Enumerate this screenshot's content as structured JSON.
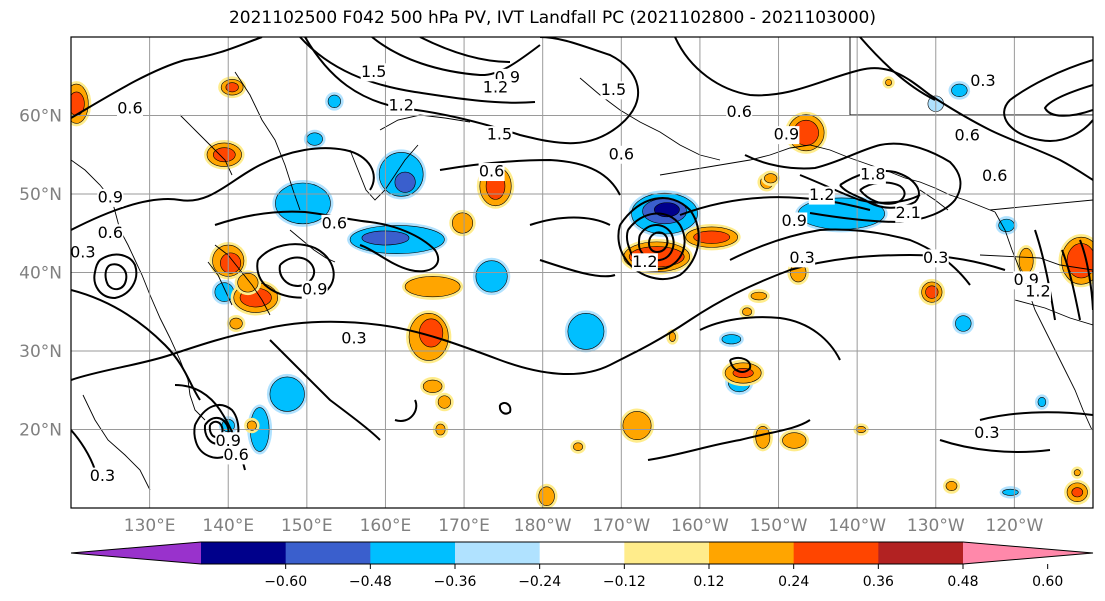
{
  "title": "2021102500 F042 500 hPa PV, IVT Landfall PC (2021102800 - 2021103000)",
  "lat_ticks": [
    {
      "lat": 60,
      "label": "60°N"
    },
    {
      "lat": 50,
      "label": "50°N"
    },
    {
      "lat": 40,
      "label": "40°N"
    },
    {
      "lat": 30,
      "label": "30°N"
    },
    {
      "lat": 20,
      "label": "20°N"
    }
  ],
  "lon_ticks": [
    {
      "lon": 130,
      "label": "130°E"
    },
    {
      "lon": 140,
      "label": "140°E"
    },
    {
      "lon": 150,
      "label": "150°E"
    },
    {
      "lon": 160,
      "label": "160°E"
    },
    {
      "lon": 170,
      "label": "170°E"
    },
    {
      "lon": 180,
      "label": "180°W"
    },
    {
      "lon": 190,
      "label": "170°W"
    },
    {
      "lon": 200,
      "label": "160°W"
    },
    {
      "lon": 210,
      "label": "150°W"
    },
    {
      "lon": 220,
      "label": "140°W"
    },
    {
      "lon": 230,
      "label": "130°W"
    },
    {
      "lon": 240,
      "label": "120°W"
    }
  ],
  "colorbar": {
    "colors": [
      "#9932cc",
      "#00008b",
      "#3a5fcd",
      "#00bfff",
      "#b0e2ff",
      "#ffffff",
      "#ffec8b",
      "#ffa500",
      "#ff4500",
      "#b22222",
      "#ff88aa"
    ],
    "tick_labels": [
      "−0.60",
      "−0.48",
      "−0.36",
      "−0.24",
      "−0.12",
      "0.12",
      "0.24",
      "0.36",
      "0.48",
      "0.60"
    ]
  },
  "contour_labels": [
    {
      "text": "1.5",
      "lon": 158.5,
      "lat": 65.5
    },
    {
      "text": "0.9",
      "lon": 175.5,
      "lat": 64.8
    },
    {
      "text": "1.2",
      "lon": 174,
      "lat": 63.5
    },
    {
      "text": "1.5",
      "lon": 189,
      "lat": 63.2
    },
    {
      "text": "0.3",
      "lon": 236,
      "lat": 64.3
    },
    {
      "text": "0.6",
      "lon": 127.5,
      "lat": 60.8
    },
    {
      "text": "1.2",
      "lon": 162,
      "lat": 61.2
    },
    {
      "text": "1.5",
      "lon": 174.5,
      "lat": 57.5
    },
    {
      "text": "0.6",
      "lon": 205,
      "lat": 60.4
    },
    {
      "text": "0.9",
      "lon": 211,
      "lat": 57.5
    },
    {
      "text": "0.6",
      "lon": 234,
      "lat": 57.4
    },
    {
      "text": "0.6",
      "lon": 190,
      "lat": 55
    },
    {
      "text": "0.6",
      "lon": 173.5,
      "lat": 52.8
    },
    {
      "text": "1.8",
      "lon": 222,
      "lat": 52.4
    },
    {
      "text": "1.2",
      "lon": 215.5,
      "lat": 49.8
    },
    {
      "text": "0.6",
      "lon": 237.5,
      "lat": 52.2
    },
    {
      "text": "0.9",
      "lon": 125,
      "lat": 49.5
    },
    {
      "text": "0.6",
      "lon": 125,
      "lat": 45
    },
    {
      "text": "0.3",
      "lon": 121.5,
      "lat": 42.5
    },
    {
      "text": "0.6",
      "lon": 153.5,
      "lat": 46.2
    },
    {
      "text": "2.1",
      "lon": 226.5,
      "lat": 47.5
    },
    {
      "text": "0.9",
      "lon": 212,
      "lat": 46.5
    },
    {
      "text": "0.3",
      "lon": 213,
      "lat": 41.8
    },
    {
      "text": "1.2",
      "lon": 193,
      "lat": 41.3
    },
    {
      "text": "0.3",
      "lon": 230,
      "lat": 41.8
    },
    {
      "text": "0.9",
      "lon": 151,
      "lat": 37.8
    },
    {
      "text": "0.3",
      "lon": 156,
      "lat": 31.5
    },
    {
      "text": "0.9",
      "lon": 241.5,
      "lat": 39
    },
    {
      "text": "1.2",
      "lon": 243,
      "lat": 37.5
    },
    {
      "text": "0.9",
      "lon": 140,
      "lat": 18.5
    },
    {
      "text": "0.6",
      "lon": 141,
      "lat": 16.7
    },
    {
      "text": "0.3",
      "lon": 236.5,
      "lat": 19.5
    },
    {
      "text": "0.3",
      "lon": 124,
      "lat": 14
    }
  ],
  "pv_anomalies": [
    {
      "lon": 149.5,
      "lat": 48.8,
      "rx": 3.5,
      "ry": 2.6,
      "level": -0.24
    },
    {
      "lon": 162,
      "lat": 52.5,
      "rx": 2.8,
      "ry": 2.8,
      "level": -0.24
    },
    {
      "lon": 162.5,
      "lat": 51.5,
      "rx": 1.3,
      "ry": 1.3,
      "level": -0.36
    },
    {
      "lon": 161.5,
      "lat": 44.2,
      "rx": 6,
      "ry": 1.8,
      "level": -0.24
    },
    {
      "lon": 160,
      "lat": 44.4,
      "rx": 3,
      "ry": 0.9,
      "level": -0.36
    },
    {
      "lon": 173.5,
      "lat": 39.5,
      "rx": 2,
      "ry": 2,
      "level": -0.24
    },
    {
      "lon": 195.5,
      "lat": 47.5,
      "rx": 4.2,
      "ry": 2.6,
      "level": -0.24
    },
    {
      "lon": 195.5,
      "lat": 47.8,
      "rx": 2.8,
      "ry": 1.6,
      "level": -0.36
    },
    {
      "lon": 195.8,
      "lat": 48,
      "rx": 1.6,
      "ry": 0.9,
      "level": -0.48
    },
    {
      "lon": 218,
      "lat": 47.5,
      "rx": 5.5,
      "ry": 2,
      "level": -0.24
    },
    {
      "lon": 185.5,
      "lat": 32.5,
      "rx": 2.3,
      "ry": 2.3,
      "level": -0.24
    },
    {
      "lon": 147.5,
      "lat": 24.5,
      "rx": 2.2,
      "ry": 2.2,
      "level": -0.24
    },
    {
      "lon": 144,
      "lat": 20,
      "rx": 1.2,
      "ry": 2.8,
      "level": -0.24
    },
    {
      "lon": 139.5,
      "lat": 37.5,
      "rx": 1.2,
      "ry": 1.2,
      "level": -0.24
    },
    {
      "lon": 140,
      "lat": 20.5,
      "rx": 0.8,
      "ry": 0.8,
      "level": -0.24
    },
    {
      "lon": 230,
      "lat": 61.5,
      "rx": 1,
      "ry": 1,
      "level": -0.12
    },
    {
      "lon": 233,
      "lat": 63.2,
      "rx": 1,
      "ry": 0.8,
      "level": -0.24
    },
    {
      "lon": 151,
      "lat": 57,
      "rx": 1,
      "ry": 0.8,
      "level": -0.24
    },
    {
      "lon": 153.5,
      "lat": 61.8,
      "rx": 0.8,
      "ry": 0.8,
      "level": -0.24
    },
    {
      "lon": 205,
      "lat": 26,
      "rx": 1.4,
      "ry": 1.2,
      "level": -0.24
    },
    {
      "lon": 204,
      "lat": 31.5,
      "rx": 1.2,
      "ry": 0.6,
      "level": -0.24
    },
    {
      "lon": 233.5,
      "lat": 33.5,
      "rx": 1,
      "ry": 1,
      "level": -0.24
    },
    {
      "lon": 239,
      "lat": 46,
      "rx": 1,
      "ry": 0.8,
      "level": -0.24
    },
    {
      "lon": 243.5,
      "lat": 23.5,
      "rx": 0.5,
      "ry": 0.6,
      "level": -0.24
    },
    {
      "lon": 239.5,
      "lat": 12,
      "rx": 1,
      "ry": 0.4,
      "level": -0.24
    },
    {
      "lon": 120.7,
      "lat": 61.5,
      "rx": 1.5,
      "ry": 2.5,
      "level": 0.24
    },
    {
      "lon": 120.7,
      "lat": 61.5,
      "rx": 1,
      "ry": 1.5,
      "level": 0.36
    },
    {
      "lon": 140.5,
      "lat": 63.6,
      "rx": 1.4,
      "ry": 1,
      "level": 0.24
    },
    {
      "lon": 140.5,
      "lat": 63.6,
      "rx": 0.8,
      "ry": 0.6,
      "level": 0.36
    },
    {
      "lon": 139.5,
      "lat": 55,
      "rx": 2.2,
      "ry": 1.5,
      "level": 0.24
    },
    {
      "lon": 139.5,
      "lat": 55,
      "rx": 1.4,
      "ry": 0.9,
      "level": 0.36
    },
    {
      "lon": 140,
      "lat": 41.5,
      "rx": 2,
      "ry": 2,
      "level": 0.24
    },
    {
      "lon": 140.3,
      "lat": 41.2,
      "rx": 1.3,
      "ry": 1.3,
      "level": 0.36
    },
    {
      "lon": 143.5,
      "lat": 36.8,
      "rx": 2.8,
      "ry": 1.9,
      "level": 0.24
    },
    {
      "lon": 143.5,
      "lat": 36.8,
      "rx": 2,
      "ry": 1.2,
      "level": 0.36
    },
    {
      "lon": 142.5,
      "lat": 38.7,
      "rx": 1.3,
      "ry": 1.2,
      "level": 0.24
    },
    {
      "lon": 141,
      "lat": 33.5,
      "rx": 0.8,
      "ry": 0.7,
      "level": 0.24
    },
    {
      "lon": 174,
      "lat": 51,
      "rx": 2,
      "ry": 2.5,
      "level": 0.24
    },
    {
      "lon": 174,
      "lat": 51,
      "rx": 1.2,
      "ry": 1.7,
      "level": 0.36
    },
    {
      "lon": 169.8,
      "lat": 46.3,
      "rx": 1.3,
      "ry": 1.3,
      "level": 0.24
    },
    {
      "lon": 166,
      "lat": 38.2,
      "rx": 3.5,
      "ry": 1.3,
      "level": 0.24
    },
    {
      "lon": 165.5,
      "lat": 31.8,
      "rx": 2.5,
      "ry": 3,
      "level": 0.24
    },
    {
      "lon": 165.8,
      "lat": 32.3,
      "rx": 1.5,
      "ry": 1.8,
      "level": 0.36
    },
    {
      "lon": 166,
      "lat": 25.5,
      "rx": 1.2,
      "ry": 0.8,
      "level": 0.24
    },
    {
      "lon": 167,
      "lat": 20,
      "rx": 0.6,
      "ry": 0.7,
      "level": 0.24
    },
    {
      "lon": 194.5,
      "lat": 42,
      "rx": 4.2,
      "ry": 1.9,
      "level": 0.24
    },
    {
      "lon": 194.5,
      "lat": 42,
      "rx": 3.5,
      "ry": 1.3,
      "level": 0.36
    },
    {
      "lon": 201.5,
      "lat": 44.5,
      "rx": 3.3,
      "ry": 1.3,
      "level": 0.24
    },
    {
      "lon": 201.5,
      "lat": 44.5,
      "rx": 2.3,
      "ry": 0.8,
      "level": 0.36
    },
    {
      "lon": 213.5,
      "lat": 57.8,
      "rx": 2.3,
      "ry": 2.3,
      "level": 0.24
    },
    {
      "lon": 213.5,
      "lat": 57.8,
      "rx": 1.6,
      "ry": 1.6,
      "level": 0.36
    },
    {
      "lon": 208.5,
      "lat": 51.5,
      "rx": 0.8,
      "ry": 0.8,
      "level": 0.24
    },
    {
      "lon": 212.5,
      "lat": 40,
      "rx": 1,
      "ry": 1.2,
      "level": 0.24
    },
    {
      "lon": 229.5,
      "lat": 37.5,
      "rx": 1.3,
      "ry": 1.3,
      "level": 0.24
    },
    {
      "lon": 229.5,
      "lat": 37.5,
      "rx": 0.8,
      "ry": 0.8,
      "level": 0.36
    },
    {
      "lon": 241.5,
      "lat": 41.5,
      "rx": 0.9,
      "ry": 1.6,
      "level": 0.24
    },
    {
      "lon": 248.5,
      "lat": 41.5,
      "rx": 2.5,
      "ry": 3,
      "level": 0.24
    },
    {
      "lon": 248.5,
      "lat": 41.5,
      "rx": 1.8,
      "ry": 2.2,
      "level": 0.36
    },
    {
      "lon": 207.5,
      "lat": 37,
      "rx": 1,
      "ry": 0.5,
      "level": 0.24
    },
    {
      "lon": 206,
      "lat": 35,
      "rx": 0.6,
      "ry": 0.5,
      "level": 0.24
    },
    {
      "lon": 205.5,
      "lat": 27.2,
      "rx": 2.3,
      "ry": 1.3,
      "level": 0.24
    },
    {
      "lon": 205.5,
      "lat": 27.2,
      "rx": 1.3,
      "ry": 0.6,
      "level": 0.36
    },
    {
      "lon": 192,
      "lat": 20.5,
      "rx": 1.8,
      "ry": 1.8,
      "level": 0.24
    },
    {
      "lon": 212,
      "lat": 18.6,
      "rx": 1.5,
      "ry": 1,
      "level": 0.24
    },
    {
      "lon": 208,
      "lat": 19,
      "rx": 0.9,
      "ry": 1.4,
      "level": 0.24
    },
    {
      "lon": 196.5,
      "lat": 31.8,
      "rx": 0.4,
      "ry": 0.6,
      "level": 0.24
    },
    {
      "lon": 180.5,
      "lat": 11.5,
      "rx": 1,
      "ry": 1.2,
      "level": 0.24
    },
    {
      "lon": 184.5,
      "lat": 17.8,
      "rx": 0.6,
      "ry": 0.5,
      "level": 0.24
    },
    {
      "lon": 220.5,
      "lat": 20,
      "rx": 0.6,
      "ry": 0.4,
      "level": 0.24
    },
    {
      "lon": 232,
      "lat": 12.8,
      "rx": 0.7,
      "ry": 0.6,
      "level": 0.24
    },
    {
      "lon": 248,
      "lat": 12,
      "rx": 1.3,
      "ry": 1.2,
      "level": 0.24
    },
    {
      "lon": 248,
      "lat": 12,
      "rx": 0.7,
      "ry": 0.6,
      "level": 0.36
    },
    {
      "lon": 248,
      "lat": 14.5,
      "rx": 0.4,
      "ry": 0.4,
      "level": 0.24
    },
    {
      "lon": 209,
      "lat": 52,
      "rx": 0.8,
      "ry": 0.6,
      "level": 0.24
    },
    {
      "lon": 167.5,
      "lat": 23.5,
      "rx": 0.8,
      "ry": 0.8,
      "level": 0.24
    },
    {
      "lon": 143,
      "lat": 20.5,
      "rx": 0.6,
      "ry": 0.6,
      "level": 0.24
    },
    {
      "lon": 224,
      "lat": 64.2,
      "rx": 0.4,
      "ry": 0.4,
      "level": 0.24
    }
  ]
}
